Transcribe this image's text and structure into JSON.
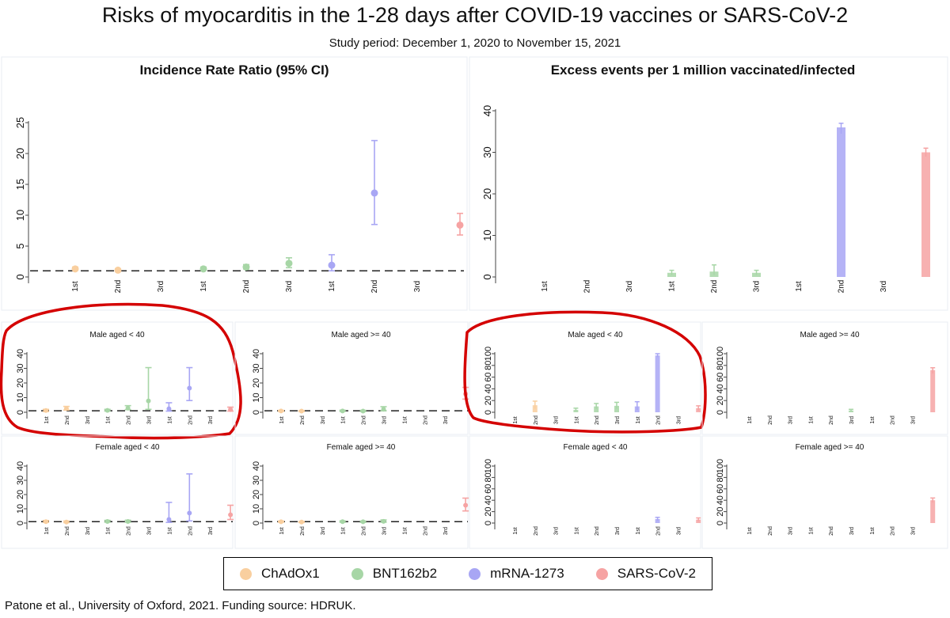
{
  "figure": {
    "title": "Risks of myocarditis in the 1-28 days after COVID-19 vaccines or SARS-CoV-2",
    "subtitle": "Study period: December 1, 2020 to November 15, 2021",
    "footer": "Patone et al., University of Oxford, 2021. Funding source: HDRUK."
  },
  "colors": {
    "ChAdOx1": "#f9cf9f",
    "BNT162b2": "#a7d6a6",
    "mRNA-1273": "#a8a6f4",
    "SARS-CoV-2": "#f6a3a3",
    "annotation": "#d40000"
  },
  "legend": [
    {
      "label": "ChAdOx1",
      "color": "#f9cf9f"
    },
    {
      "label": "BNT162b2",
      "color": "#a7d6a6"
    },
    {
      "label": "mRNA-1273",
      "color": "#a8a6f4"
    },
    {
      "label": "SARS-CoV-2",
      "color": "#f6a3a3"
    }
  ],
  "chart_data": [
    {
      "id": "irr-overall",
      "type": "scatter",
      "title": "Incidence Rate Ratio (95% CI)",
      "categories": [
        "1st",
        "2nd",
        "3rd",
        "1st",
        "2nd",
        "3rd",
        "1st",
        "2nd",
        "3rd",
        ""
      ],
      "yticks": [
        0,
        5,
        10,
        15,
        20,
        25
      ],
      "ylim": [
        0,
        25
      ],
      "reference_line": 1,
      "series": [
        {
          "name": "ChAdOx1",
          "points": [
            {
              "x": 0,
              "y": 1.3,
              "lo": 1.1,
              "hi": 1.6
            },
            {
              "x": 1,
              "y": 1.1,
              "lo": 0.9,
              "hi": 1.3
            }
          ]
        },
        {
          "name": "BNT162b2",
          "points": [
            {
              "x": 3,
              "y": 1.3,
              "lo": 1.1,
              "hi": 1.6
            },
            {
              "x": 4,
              "y": 1.6,
              "lo": 1.3,
              "hi": 2.0
            },
            {
              "x": 5,
              "y": 2.2,
              "lo": 1.5,
              "hi": 3.1
            }
          ]
        },
        {
          "name": "mRNA-1273",
          "points": [
            {
              "x": 6,
              "y": 1.9,
              "lo": 1.0,
              "hi": 3.6
            },
            {
              "x": 7,
              "y": 13.6,
              "lo": 8.5,
              "hi": 22.1
            }
          ]
        },
        {
          "name": "SARS-CoV-2",
          "points": [
            {
              "x": 9,
              "y": 8.4,
              "lo": 6.8,
              "hi": 10.3
            }
          ]
        }
      ]
    },
    {
      "id": "excess-overall",
      "type": "bar",
      "title": "Excess events per 1 million vaccinated/infected",
      "categories": [
        "1st",
        "2nd",
        "3rd",
        "1st",
        "2nd",
        "3rd",
        "1st",
        "2nd",
        "3rd",
        ""
      ],
      "yticks": [
        0,
        10,
        20,
        30,
        40
      ],
      "ylim": [
        0,
        40
      ],
      "series": [
        {
          "name": "BNT162b2",
          "points": [
            {
              "x": 3,
              "y": 1.0,
              "lo": 0.5,
              "hi": 1.6
            },
            {
              "x": 4,
              "y": 1.3,
              "lo": 0.5,
              "hi": 2.9
            },
            {
              "x": 5,
              "y": 1.0,
              "lo": 0.5,
              "hi": 1.6
            }
          ]
        },
        {
          "name": "mRNA-1273",
          "points": [
            {
              "x": 7,
              "y": 36,
              "lo": 34.5,
              "hi": 37
            }
          ]
        },
        {
          "name": "SARS-CoV-2",
          "points": [
            {
              "x": 9,
              "y": 30,
              "lo": 29,
              "hi": 31
            }
          ]
        }
      ]
    },
    {
      "id": "irr-male-lt40",
      "type": "scatter",
      "title": "Male aged < 40",
      "annotated": true,
      "categories": [
        "1st",
        "2nd",
        "3rd",
        "1st",
        "2nd",
        "3rd",
        "1st",
        "2nd",
        "3rd",
        ""
      ],
      "yticks": [
        0,
        10,
        20,
        30,
        40
      ],
      "ylim": [
        0,
        40
      ],
      "reference_line": 1,
      "series": [
        {
          "name": "ChAdOx1",
          "points": [
            {
              "x": 0,
              "y": 1.2,
              "lo": 0.5,
              "hi": 2.0
            },
            {
              "x": 1,
              "y": 2.5,
              "lo": 1.5,
              "hi": 4.0
            }
          ]
        },
        {
          "name": "BNT162b2",
          "points": [
            {
              "x": 3,
              "y": 1.3,
              "lo": 0.8,
              "hi": 2.0
            },
            {
              "x": 4,
              "y": 2.8,
              "lo": 1.8,
              "hi": 4.5
            },
            {
              "x": 5,
              "y": 7.8,
              "lo": 2.0,
              "hi": 30.5
            }
          ]
        },
        {
          "name": "mRNA-1273",
          "points": [
            {
              "x": 6,
              "y": 2.4,
              "lo": 0.8,
              "hi": 6.5
            },
            {
              "x": 7,
              "y": 16.5,
              "lo": 8.0,
              "hi": 30.5
            }
          ]
        },
        {
          "name": "SARS-CoV-2",
          "points": [
            {
              "x": 9,
              "y": 1.8,
              "lo": 0.8,
              "hi": 3.5
            }
          ]
        }
      ]
    },
    {
      "id": "irr-male-ge40",
      "type": "scatter",
      "title": "Male aged >= 40",
      "categories": [
        "1st",
        "2nd",
        "3rd",
        "1st",
        "2nd",
        "3rd",
        "1st",
        "2nd",
        "3rd",
        ""
      ],
      "yticks": [
        0,
        10,
        20,
        30,
        40
      ],
      "ylim": [
        0,
        40
      ],
      "reference_line": 1,
      "series": [
        {
          "name": "ChAdOx1",
          "points": [
            {
              "x": 0,
              "y": 0.9,
              "lo": 0.6,
              "hi": 1.3
            },
            {
              "x": 1,
              "y": 0.8,
              "lo": 0.5,
              "hi": 1.2
            }
          ]
        },
        {
          "name": "BNT162b2",
          "points": [
            {
              "x": 3,
              "y": 0.9,
              "lo": 0.6,
              "hi": 1.4
            },
            {
              "x": 4,
              "y": 0.8,
              "lo": 0.5,
              "hi": 1.3
            },
            {
              "x": 5,
              "y": 2.0,
              "lo": 1.0,
              "hi": 3.8
            }
          ]
        },
        {
          "name": "SARS-CoV-2",
          "points": [
            {
              "x": 9,
              "y": 12.5,
              "lo": 9.0,
              "hi": 17.0
            }
          ]
        }
      ]
    },
    {
      "id": "excess-male-lt40",
      "type": "bar",
      "title": "Male aged < 40",
      "annotated": true,
      "categories": [
        "1st",
        "2nd",
        "3rd",
        "1st",
        "2nd",
        "3rd",
        "1st",
        "2nd",
        "3rd",
        ""
      ],
      "yticks": [
        0,
        20,
        40,
        60,
        80,
        100
      ],
      "ylim": [
        0,
        100
      ],
      "series": [
        {
          "name": "ChAdOx1",
          "points": [
            {
              "x": 1,
              "y": 12,
              "lo": 6,
              "hi": 19
            }
          ]
        },
        {
          "name": "BNT162b2",
          "points": [
            {
              "x": 3,
              "y": 4,
              "lo": 2,
              "hi": 7
            },
            {
              "x": 4,
              "y": 10,
              "lo": 6,
              "hi": 15
            },
            {
              "x": 5,
              "y": 11,
              "lo": 6,
              "hi": 17
            }
          ]
        },
        {
          "name": "mRNA-1273",
          "points": [
            {
              "x": 6,
              "y": 10,
              "lo": 4,
              "hi": 18
            },
            {
              "x": 7,
              "y": 97,
              "lo": 94,
              "hi": 100
            }
          ]
        },
        {
          "name": "SARS-CoV-2",
          "points": [
            {
              "x": 9,
              "y": 7,
              "lo": 3,
              "hi": 11
            }
          ]
        }
      ]
    },
    {
      "id": "excess-male-ge40",
      "type": "bar",
      "title": "Male aged >= 40",
      "categories": [
        "1st",
        "2nd",
        "3rd",
        "1st",
        "2nd",
        "3rd",
        "1st",
        "2nd",
        "3rd",
        ""
      ],
      "yticks": [
        0,
        20,
        40,
        60,
        80,
        100
      ],
      "ylim": [
        0,
        100
      ],
      "series": [
        {
          "name": "BNT162b2",
          "points": [
            {
              "x": 5,
              "y": 3,
              "lo": 1,
              "hi": 5
            }
          ]
        },
        {
          "name": "SARS-CoV-2",
          "points": [
            {
              "x": 9,
              "y": 72,
              "lo": 66,
              "hi": 76
            }
          ]
        }
      ]
    },
    {
      "id": "irr-female-lt40",
      "type": "scatter",
      "title": "Female aged < 40",
      "categories": [
        "1st",
        "2nd",
        "3rd",
        "1st",
        "2nd",
        "3rd",
        "1st",
        "2nd",
        "3rd",
        ""
      ],
      "yticks": [
        0,
        10,
        20,
        30,
        40
      ],
      "ylim": [
        0,
        40
      ],
      "reference_line": 1,
      "series": [
        {
          "name": "ChAdOx1",
          "points": [
            {
              "x": 0,
              "y": 1.0,
              "lo": 0.5,
              "hi": 1.8
            },
            {
              "x": 1,
              "y": 0.7,
              "lo": 0.3,
              "hi": 1.4
            }
          ]
        },
        {
          "name": "BNT162b2",
          "points": [
            {
              "x": 3,
              "y": 1.1,
              "lo": 0.6,
              "hi": 1.9
            },
            {
              "x": 4,
              "y": 1.1,
              "lo": 0.6,
              "hi": 2.0
            }
          ]
        },
        {
          "name": "mRNA-1273",
          "points": [
            {
              "x": 6,
              "y": 2.5,
              "lo": 0.5,
              "hi": 14.5
            },
            {
              "x": 7,
              "y": 7.0,
              "lo": 1.5,
              "hi": 34.5
            }
          ]
        },
        {
          "name": "SARS-CoV-2",
          "points": [
            {
              "x": 9,
              "y": 5.8,
              "lo": 2.5,
              "hi": 12.5
            }
          ]
        }
      ]
    },
    {
      "id": "irr-female-ge40",
      "type": "scatter",
      "title": "Female aged >= 40",
      "categories": [
        "1st",
        "2nd",
        "3rd",
        "1st",
        "2nd",
        "3rd",
        "1st",
        "2nd",
        "3rd",
        ""
      ],
      "yticks": [
        0,
        10,
        20,
        30,
        40
      ],
      "ylim": [
        0,
        40
      ],
      "reference_line": 1,
      "series": [
        {
          "name": "ChAdOx1",
          "points": [
            {
              "x": 0,
              "y": 0.9,
              "lo": 0.6,
              "hi": 1.4
            },
            {
              "x": 1,
              "y": 0.7,
              "lo": 0.4,
              "hi": 1.1
            }
          ]
        },
        {
          "name": "BNT162b2",
          "points": [
            {
              "x": 3,
              "y": 1.0,
              "lo": 0.6,
              "hi": 1.5
            },
            {
              "x": 4,
              "y": 0.9,
              "lo": 0.5,
              "hi": 1.4
            },
            {
              "x": 5,
              "y": 1.2,
              "lo": 0.6,
              "hi": 2.2
            }
          ]
        },
        {
          "name": "SARS-CoV-2",
          "points": [
            {
              "x": 9,
              "y": 12.5,
              "lo": 8.5,
              "hi": 17.5
            }
          ]
        }
      ]
    },
    {
      "id": "excess-female-lt40",
      "type": "bar",
      "title": "Female aged < 40",
      "categories": [
        "1st",
        "2nd",
        "3rd",
        "1st",
        "2nd",
        "3rd",
        "1st",
        "2nd",
        "3rd",
        ""
      ],
      "yticks": [
        0,
        20,
        40,
        60,
        80,
        100
      ],
      "ylim": [
        0,
        100
      ],
      "series": [
        {
          "name": "mRNA-1273",
          "points": [
            {
              "x": 7,
              "y": 7,
              "lo": 4,
              "hi": 10
            }
          ]
        },
        {
          "name": "SARS-CoV-2",
          "points": [
            {
              "x": 9,
              "y": 6,
              "lo": 3,
              "hi": 9
            }
          ]
        }
      ]
    },
    {
      "id": "excess-female-ge40",
      "type": "bar",
      "title": "Female aged >= 40",
      "categories": [
        "1st",
        "2nd",
        "3rd",
        "1st",
        "2nd",
        "3rd",
        "1st",
        "2nd",
        "3rd",
        ""
      ],
      "yticks": [
        0,
        20,
        40,
        60,
        80,
        100
      ],
      "ylim": [
        0,
        100
      ],
      "series": [
        {
          "name": "SARS-CoV-2",
          "points": [
            {
              "x": 9,
              "y": 40,
              "lo": 36,
              "hi": 44
            }
          ]
        }
      ]
    }
  ]
}
